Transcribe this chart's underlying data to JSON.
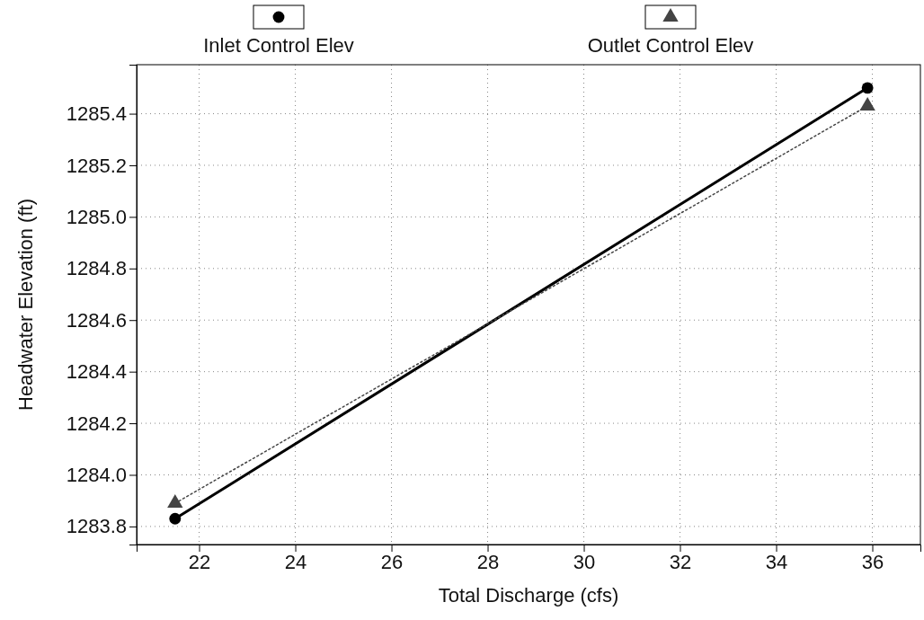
{
  "chart_data": {
    "type": "line",
    "xlabel": "Total Discharge (cfs)",
    "ylabel": "Headwater Elevation (ft)",
    "xlim": [
      20.7,
      37
    ],
    "xticks": [
      22,
      24,
      26,
      28,
      30,
      32,
      34,
      36
    ],
    "ylim": [
      1283.73,
      1285.59
    ],
    "yticks": [
      {
        "value": 1283.8,
        "label": "1283.8"
      },
      {
        "value": 1284.0,
        "label": "1284.0"
      },
      {
        "value": 1284.2,
        "label": "1284.2"
      },
      {
        "value": 1284.4,
        "label": "1284.4"
      },
      {
        "value": 1284.6,
        "label": "1284.6"
      },
      {
        "value": 1284.8,
        "label": "1284.8"
      },
      {
        "value": 1285.0,
        "label": "1285.0"
      },
      {
        "value": 1285.2,
        "label": "1285.2"
      },
      {
        "value": 1285.4,
        "label": "1285.4"
      }
    ],
    "grid": true,
    "legend": "top",
    "x": [
      21.5,
      35.9
    ],
    "series": [
      {
        "name": "Inlet Control Elev",
        "color": "#000000",
        "values": [
          1283.83,
          1285.5
        ],
        "marker": "circle",
        "line_style": "solid"
      },
      {
        "name": "Outlet Control Elev",
        "color": "#444444",
        "values": [
          1283.89,
          1285.43
        ],
        "marker": "triangle",
        "line_style": "dotted"
      }
    ]
  }
}
